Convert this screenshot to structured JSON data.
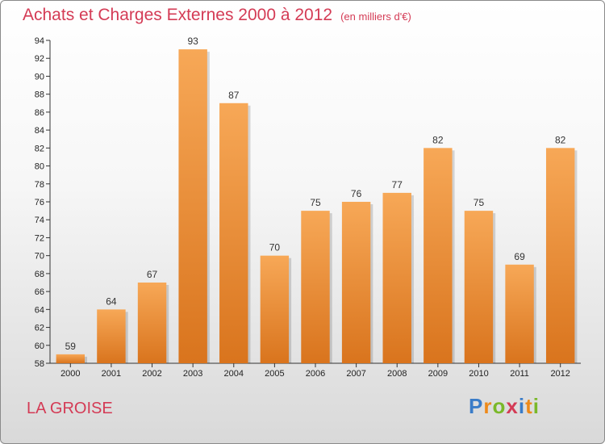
{
  "header": {
    "title": "Achats et Charges Externes 2000 à 2012",
    "subtitle": "(en milliers d'€)"
  },
  "footer": {
    "commune": "LA GROISE",
    "logo": [
      "P",
      "r",
      "o",
      "x",
      "i",
      "t",
      "i"
    ]
  },
  "colors": {
    "title": "#d43b55",
    "bar_light": "#f7a857",
    "bar_dark": "#d9741d",
    "logo": [
      "#3a7cc8",
      "#ee8a1a",
      "#7ab829",
      "#d43b55",
      "#3a7cc8",
      "#ee8a1a",
      "#7ab829"
    ]
  },
  "chart_data": {
    "type": "bar",
    "title": "Achats et Charges Externes 2000 à 2012",
    "subtitle": "(en milliers d'€)",
    "categories": [
      "2000",
      "2001",
      "2002",
      "2003",
      "2004",
      "2005",
      "2006",
      "2007",
      "2008",
      "2009",
      "2010",
      "2011",
      "2012"
    ],
    "values": [
      59,
      64,
      67,
      93,
      87,
      70,
      75,
      76,
      77,
      82,
      75,
      69,
      82
    ],
    "ylim": [
      58,
      94
    ],
    "ytick_step": 2,
    "grid": false,
    "legend": "none"
  }
}
